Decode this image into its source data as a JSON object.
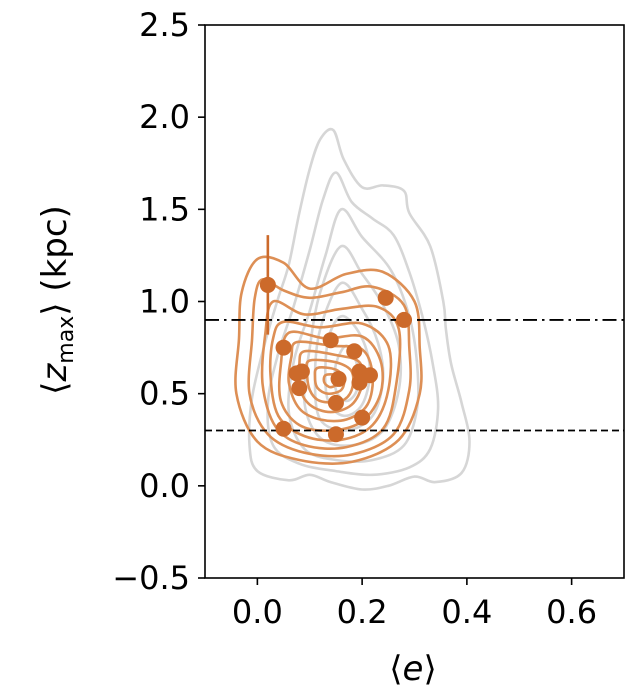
{
  "chart_data": {
    "type": "scatter",
    "xlabel": "⟨e⟩",
    "ylabel": "⟨z_max⟩ (kpc)",
    "ylabel_parts": {
      "open": "⟨",
      "var": "z",
      "sub": "max",
      "close": "⟩ (kpc)"
    },
    "xlabel_parts": {
      "open": "⟨",
      "var": "e",
      "close": "⟩"
    },
    "xlim": [
      -0.1,
      0.7
    ],
    "ylim": [
      -0.5,
      2.5
    ],
    "xticks": [
      0.0,
      0.2,
      0.4,
      0.6
    ],
    "xtick_labels": [
      "0.0",
      "0.2",
      "0.4",
      "0.6"
    ],
    "yticks": [
      -0.5,
      0.0,
      0.5,
      1.0,
      1.5,
      2.0,
      2.5
    ],
    "ytick_labels": [
      "−0.5",
      "0.0",
      "0.5",
      "1.0",
      "1.5",
      "2.0",
      "2.5"
    ],
    "grid": false,
    "reference_lines": [
      {
        "y": 0.9,
        "style": "dashdot",
        "color": "#000000"
      },
      {
        "y": 0.3,
        "style": "dashed",
        "color": "#000000"
      }
    ],
    "points": [
      {
        "x": 0.02,
        "y": 1.09,
        "yerr_low": 0.27,
        "yerr_high": 0.27
      },
      {
        "x": 0.245,
        "y": 1.02
      },
      {
        "x": 0.28,
        "y": 0.9
      },
      {
        "x": 0.14,
        "y": 0.79
      },
      {
        "x": 0.05,
        "y": 0.75
      },
      {
        "x": 0.185,
        "y": 0.73
      },
      {
        "x": 0.075,
        "y": 0.61
      },
      {
        "x": 0.085,
        "y": 0.62
      },
      {
        "x": 0.195,
        "y": 0.62
      },
      {
        "x": 0.215,
        "y": 0.6
      },
      {
        "x": 0.155,
        "y": 0.58
      },
      {
        "x": 0.195,
        "y": 0.56
      },
      {
        "x": 0.08,
        "y": 0.53
      },
      {
        "x": 0.15,
        "y": 0.45
      },
      {
        "x": 0.2,
        "y": 0.37
      },
      {
        "x": 0.05,
        "y": 0.31
      },
      {
        "x": 0.15,
        "y": 0.28
      }
    ],
    "contours": {
      "background_color": "#d6d6d6",
      "foreground_color": "#dd8f55",
      "background_levels": [
        [
          [
            0.145,
            1.93
          ],
          [
            0.165,
            1.77
          ],
          [
            0.2,
            1.62
          ],
          [
            0.24,
            1.63
          ],
          [
            0.28,
            1.6
          ],
          [
            0.29,
            1.48
          ],
          [
            0.33,
            1.3
          ],
          [
            0.355,
            1.0
          ],
          [
            0.36,
            0.85
          ],
          [
            0.37,
            0.66
          ],
          [
            0.39,
            0.45
          ],
          [
            0.405,
            0.24
          ],
          [
            0.39,
            0.07
          ],
          [
            0.34,
            0.02
          ],
          [
            0.3,
            0.05
          ],
          [
            0.25,
            0.0
          ],
          [
            0.2,
            -0.02
          ],
          [
            0.14,
            0.02
          ],
          [
            0.1,
            0.06
          ],
          [
            0.06,
            0.03
          ],
          [
            0.0,
            0.08
          ],
          [
            -0.015,
            0.22
          ],
          [
            -0.01,
            0.48
          ],
          [
            0.015,
            0.78
          ],
          [
            0.04,
            1.02
          ],
          [
            0.06,
            1.2
          ],
          [
            0.08,
            1.48
          ],
          [
            0.1,
            1.72
          ],
          [
            0.12,
            1.88
          ]
        ],
        [
          [
            0.15,
            1.7
          ],
          [
            0.18,
            1.54
          ],
          [
            0.22,
            1.45
          ],
          [
            0.26,
            1.36
          ],
          [
            0.29,
            1.16
          ],
          [
            0.315,
            0.92
          ],
          [
            0.335,
            0.66
          ],
          [
            0.345,
            0.42
          ],
          [
            0.33,
            0.2
          ],
          [
            0.29,
            0.1
          ],
          [
            0.22,
            0.06
          ],
          [
            0.15,
            0.08
          ],
          [
            0.08,
            0.12
          ],
          [
            0.03,
            0.22
          ],
          [
            0.02,
            0.45
          ],
          [
            0.04,
            0.72
          ],
          [
            0.07,
            0.98
          ],
          [
            0.1,
            1.28
          ],
          [
            0.125,
            1.55
          ]
        ],
        [
          [
            0.16,
            1.5
          ],
          [
            0.2,
            1.35
          ],
          [
            0.255,
            1.17
          ],
          [
            0.29,
            0.92
          ],
          [
            0.305,
            0.66
          ],
          [
            0.305,
            0.42
          ],
          [
            0.28,
            0.22
          ],
          [
            0.22,
            0.14
          ],
          [
            0.15,
            0.14
          ],
          [
            0.09,
            0.2
          ],
          [
            0.06,
            0.4
          ],
          [
            0.07,
            0.68
          ],
          [
            0.1,
            0.95
          ],
          [
            0.13,
            1.25
          ]
        ],
        [
          [
            0.16,
            1.3
          ],
          [
            0.2,
            1.15
          ],
          [
            0.24,
            0.98
          ],
          [
            0.27,
            0.76
          ],
          [
            0.27,
            0.52
          ],
          [
            0.24,
            0.3
          ],
          [
            0.18,
            0.22
          ],
          [
            0.12,
            0.26
          ],
          [
            0.09,
            0.45
          ],
          [
            0.1,
            0.75
          ],
          [
            0.12,
            1.05
          ]
        ],
        [
          [
            0.16,
            1.1
          ],
          [
            0.2,
            0.96
          ],
          [
            0.23,
            0.78
          ],
          [
            0.24,
            0.58
          ],
          [
            0.22,
            0.38
          ],
          [
            0.17,
            0.3
          ],
          [
            0.12,
            0.36
          ],
          [
            0.11,
            0.58
          ],
          [
            0.12,
            0.85
          ]
        ],
        [
          [
            0.165,
            0.92
          ],
          [
            0.2,
            0.8
          ],
          [
            0.215,
            0.62
          ],
          [
            0.2,
            0.44
          ],
          [
            0.165,
            0.38
          ],
          [
            0.135,
            0.46
          ],
          [
            0.13,
            0.66
          ],
          [
            0.14,
            0.84
          ]
        ],
        [
          [
            0.17,
            0.76
          ],
          [
            0.19,
            0.66
          ],
          [
            0.19,
            0.52
          ],
          [
            0.17,
            0.46
          ],
          [
            0.15,
            0.52
          ],
          [
            0.15,
            0.66
          ]
        ]
      ],
      "foreground_levels": [
        [
          [
            0.0,
            1.23
          ],
          [
            0.05,
            1.21
          ],
          [
            0.1,
            1.07
          ],
          [
            0.17,
            1.15
          ],
          [
            0.24,
            1.16
          ],
          [
            0.3,
            1.0
          ],
          [
            0.31,
            0.75
          ],
          [
            0.31,
            0.5
          ],
          [
            0.27,
            0.25
          ],
          [
            0.18,
            0.13
          ],
          [
            0.08,
            0.14
          ],
          [
            0.0,
            0.24
          ],
          [
            -0.04,
            0.5
          ],
          [
            -0.035,
            0.8
          ],
          [
            -0.03,
            1.05
          ]
        ],
        [
          [
            0.01,
            1.12
          ],
          [
            0.05,
            1.06
          ],
          [
            0.1,
            1.02
          ],
          [
            0.16,
            1.05
          ],
          [
            0.22,
            1.08
          ],
          [
            0.28,
            0.98
          ],
          [
            0.29,
            0.75
          ],
          [
            0.29,
            0.52
          ],
          [
            0.26,
            0.28
          ],
          [
            0.18,
            0.17
          ],
          [
            0.09,
            0.18
          ],
          [
            0.02,
            0.28
          ],
          [
            -0.015,
            0.5
          ],
          [
            -0.01,
            0.8
          ],
          [
            -0.005,
            1.02
          ]
        ],
        [
          [
            0.03,
            1.0
          ],
          [
            0.09,
            0.93
          ],
          [
            0.16,
            0.96
          ],
          [
            0.23,
            0.97
          ],
          [
            0.27,
            0.85
          ],
          [
            0.265,
            0.55
          ],
          [
            0.24,
            0.31
          ],
          [
            0.17,
            0.21
          ],
          [
            0.09,
            0.22
          ],
          [
            0.035,
            0.32
          ],
          [
            0.01,
            0.55
          ],
          [
            0.015,
            0.82
          ]
        ],
        [
          [
            0.05,
            0.89
          ],
          [
            0.12,
            0.86
          ],
          [
            0.2,
            0.88
          ],
          [
            0.25,
            0.76
          ],
          [
            0.25,
            0.52
          ],
          [
            0.22,
            0.33
          ],
          [
            0.16,
            0.25
          ],
          [
            0.09,
            0.27
          ],
          [
            0.04,
            0.38
          ],
          [
            0.025,
            0.6
          ],
          [
            0.03,
            0.8
          ]
        ],
        [
          [
            0.06,
            0.83
          ],
          [
            0.13,
            0.8
          ],
          [
            0.2,
            0.81
          ],
          [
            0.235,
            0.68
          ],
          [
            0.235,
            0.5
          ],
          [
            0.2,
            0.35
          ],
          [
            0.14,
            0.3
          ],
          [
            0.08,
            0.33
          ],
          [
            0.045,
            0.46
          ],
          [
            0.045,
            0.66
          ]
        ],
        [
          [
            0.075,
            0.78
          ],
          [
            0.14,
            0.76
          ],
          [
            0.2,
            0.74
          ],
          [
            0.22,
            0.6
          ],
          [
            0.21,
            0.44
          ],
          [
            0.17,
            0.36
          ],
          [
            0.12,
            0.36
          ],
          [
            0.08,
            0.42
          ],
          [
            0.06,
            0.56
          ],
          [
            0.065,
            0.7
          ]
        ],
        [
          [
            0.09,
            0.73
          ],
          [
            0.15,
            0.71
          ],
          [
            0.195,
            0.67
          ],
          [
            0.2,
            0.55
          ],
          [
            0.18,
            0.44
          ],
          [
            0.14,
            0.4
          ],
          [
            0.1,
            0.44
          ],
          [
            0.08,
            0.54
          ],
          [
            0.08,
            0.66
          ]
        ],
        [
          [
            0.1,
            0.68
          ],
          [
            0.15,
            0.67
          ],
          [
            0.18,
            0.62
          ],
          [
            0.18,
            0.52
          ],
          [
            0.16,
            0.46
          ],
          [
            0.12,
            0.46
          ],
          [
            0.1,
            0.52
          ],
          [
            0.095,
            0.62
          ]
        ],
        [
          [
            0.115,
            0.64
          ],
          [
            0.15,
            0.63
          ],
          [
            0.165,
            0.58
          ],
          [
            0.16,
            0.52
          ],
          [
            0.135,
            0.5
          ],
          [
            0.115,
            0.53
          ],
          [
            0.11,
            0.59
          ]
        ],
        [
          [
            0.13,
            0.6
          ],
          [
            0.15,
            0.6
          ],
          [
            0.155,
            0.56
          ],
          [
            0.14,
            0.535
          ],
          [
            0.128,
            0.56
          ]
        ]
      ]
    },
    "colors": {
      "points": "#cc6a2b",
      "errorbar": "#cc6a2b"
    }
  }
}
